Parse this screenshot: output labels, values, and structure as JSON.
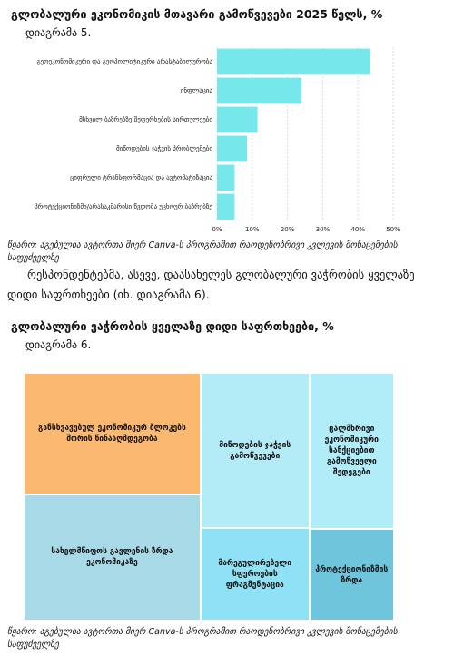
{
  "chart_data": [
    {
      "type": "bar",
      "orientation": "horizontal",
      "title": "გლობალური ეკონომიკის მთავარი გამოწვევები 2025 წელს, %",
      "subtitle": "დიაგრამა 5.",
      "categories": [
        "გეოეკონომიკური და გეოპოლიტიკური არასტაბილურობა",
        "ინფლაცია",
        "მსხვილ ბაზრებზე შეფერხების სირთულეები",
        "მიწოდების ჯაჭვის პრობლემები",
        "ციფრული ტრანსფორმაცია და ავტომატიზაცია",
        "პროტექციონიზმი/არასაკმარისი წვდომა უცხოურ ბაზრებზე"
      ],
      "values": [
        43.5,
        24,
        11.5,
        8.5,
        5,
        5
      ],
      "color": "#76e7ea",
      "xlim": [
        0,
        50
      ],
      "xticks": [
        {
          "value": 0,
          "label": "0%"
        },
        {
          "value": 10,
          "label": "10%"
        },
        {
          "value": 20,
          "label": "20%"
        },
        {
          "value": 30,
          "label": "30%"
        },
        {
          "value": 40,
          "label": "40%"
        },
        {
          "value": 50,
          "label": "50%"
        }
      ],
      "grid": true,
      "source": "წყარო: აგებულია ავტორთა მიერ Canva-ს პროგრამით რაოდენობრივი კვლევის მონაცემების საფუძველზე"
    },
    {
      "type": "treemap",
      "title": "გლობალური ვაჭრობის ყველაზე დიდი საფრთხეები, %",
      "subtitle": "დიაგრამა 6.",
      "categories": [
        "განსხვავებულ ეკონომიკურ ბლოკებს შორის წინააღმდეგობა",
        "სახელმწიფოს გავლენის ზრდა ეკონომიკაზე",
        "მიწოდების ჯაჭვის გამოწვევები",
        "მარეგულირებელი სფეროების ფრაგმენტაცია",
        "ცალმხრივი ეკონომიკური სანქციებით გამოწვეული შედეგები",
        "პროტექციონიზმის ზრდა"
      ],
      "values": [
        23.5,
        24.5,
        18.5,
        11,
        14.5,
        8.5
      ],
      "colors": [
        "#fbb870",
        "#a8d9e6",
        "#b3ebf7",
        "#8fe2f5",
        "#b1edf9",
        "#6fc5dc"
      ],
      "source": "წყარო: აგებულია ავტორთა მიერ Canva-ს პროგრამით რაოდენობრივი კვლევის მონაცემების საფუძველზე"
    }
  ],
  "document": {
    "paragraph": "რესპონდენტებმა, ასევე, დაასახელეს გლობალური ვაჭრობის ყველაზე დიდი საფრთხეები (იხ. დიაგრამა 6)."
  }
}
